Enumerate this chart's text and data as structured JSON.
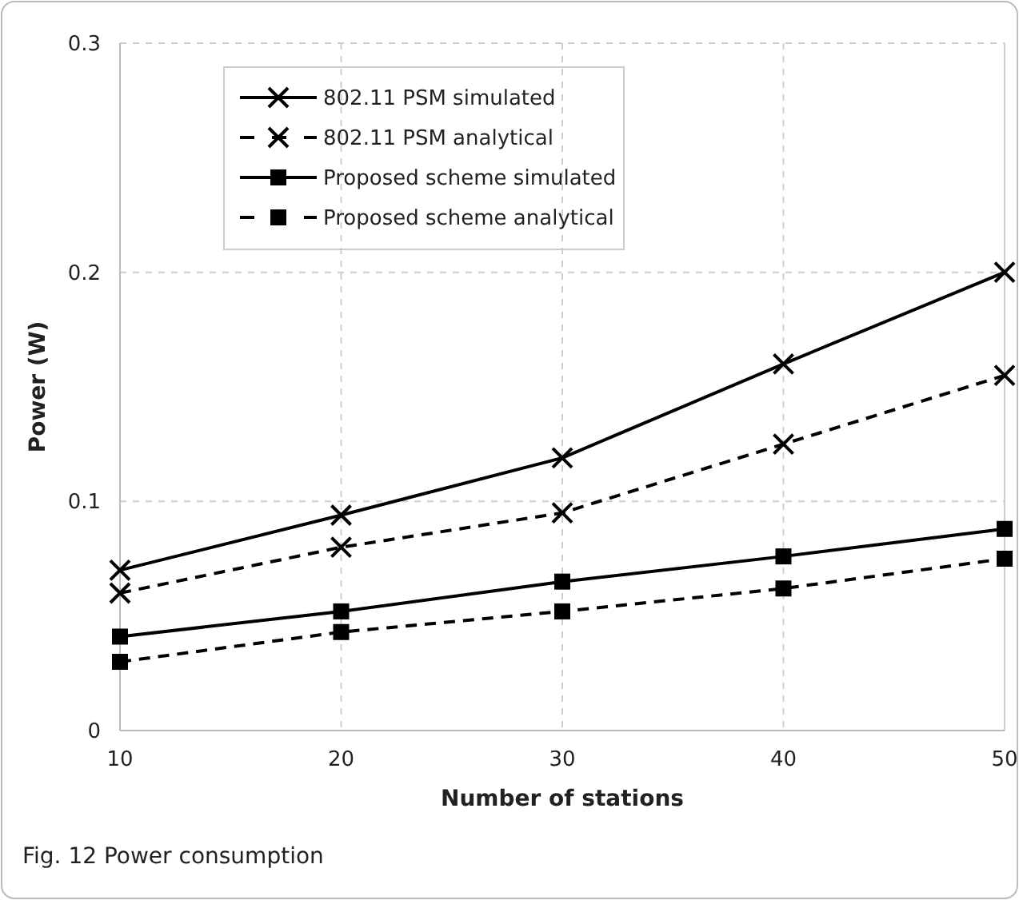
{
  "chart_data": {
    "type": "line",
    "xlabel": "Number of stations",
    "ylabel": "Power (W)",
    "xlim": [
      10,
      50
    ],
    "xticks": [
      10,
      20,
      30,
      40,
      50
    ],
    "ylim": [
      0,
      0.3
    ],
    "yticks": [
      0,
      0.1,
      0.2,
      0.3
    ],
    "grid": true,
    "legend": "top left",
    "x": [
      10,
      20,
      30,
      40,
      50
    ],
    "series": [
      {
        "name": "802.11 PSM simulated",
        "color": "#000000",
        "marker": "cross",
        "line_style": "solid",
        "values": [
          0.07,
          0.094,
          0.119,
          0.16,
          0.2
        ]
      },
      {
        "name": "802.11 PSM analytical",
        "color": "#000000",
        "marker": "cross",
        "line_style": "dashed",
        "values": [
          0.06,
          0.08,
          0.095,
          0.125,
          0.155
        ]
      },
      {
        "name": "Proposed scheme simulated",
        "color": "#000000",
        "marker": "square",
        "line_style": "solid",
        "values": [
          0.041,
          0.052,
          0.065,
          0.076,
          0.088
        ]
      },
      {
        "name": "Proposed scheme analytical",
        "color": "#000000",
        "marker": "square",
        "line_style": "dashed",
        "values": [
          0.03,
          0.043,
          0.052,
          0.062,
          0.075
        ]
      }
    ],
    "annotations": [
      "Fig. 12 Power consumption"
    ]
  }
}
